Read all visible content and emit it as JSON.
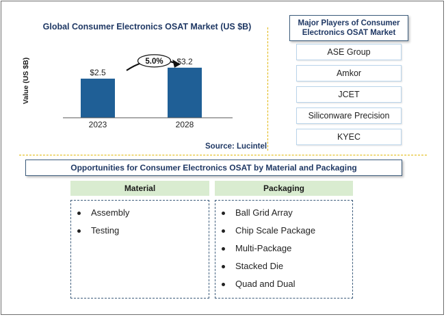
{
  "chart_data": {
    "type": "bar",
    "title": "Global Consumer Electronics OSAT Market (US $B)",
    "ylabel": "Value (US $B)",
    "categories": [
      "2023",
      "2028"
    ],
    "values": [
      2.5,
      3.2
    ],
    "data_labels": [
      "$2.5",
      "$3.2"
    ],
    "growth_label": "5.0%",
    "bar_color": "#1f5f96",
    "ylim": [
      0,
      3.5
    ],
    "source": "Source: Lucintel"
  },
  "players": {
    "title": "Major Players of Consumer Electronics OSAT Market",
    "items": [
      "ASE Group",
      "Amkor",
      "JCET",
      "Siliconware Precision",
      "KYEC"
    ]
  },
  "opportunities": {
    "title": "Opportunities for Consumer Electronics OSAT by Material and Packaging",
    "material": {
      "header": "Material",
      "items": [
        "Assembly",
        "Testing"
      ]
    },
    "packaging": {
      "header": "Packaging",
      "items": [
        "Ball Grid Array",
        "Chip Scale Package",
        "Multi-Package",
        "Stacked Die",
        "Quad and Dual"
      ]
    }
  }
}
